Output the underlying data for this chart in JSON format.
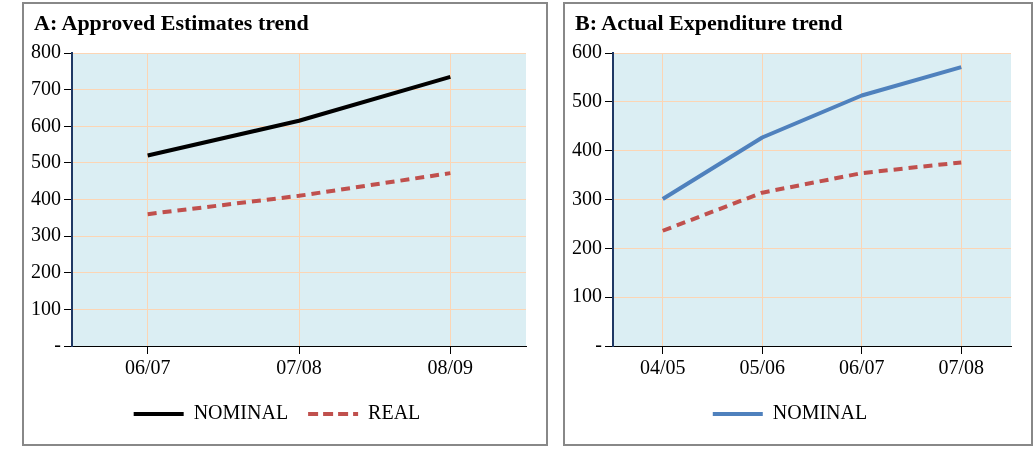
{
  "chart_data": [
    {
      "type": "line",
      "title": "A: Approved Estimates trend",
      "categories": [
        "06/07",
        "07/08",
        "08/09"
      ],
      "series": [
        {
          "name": "NOMINAL",
          "color": "#000000",
          "values": [
            520,
            615,
            735
          ]
        },
        {
          "name": "REAL",
          "color": "#c0504d",
          "values": [
            360,
            410,
            472
          ],
          "line_style": "dashed"
        }
      ],
      "ylim": [
        0,
        800
      ],
      "yticks": [
        {
          "value": 0,
          "label": "-"
        },
        100,
        200,
        300,
        400,
        500,
        600,
        700,
        800
      ],
      "grid": true,
      "legend": "bottom",
      "marker": "none"
    },
    {
      "type": "line",
      "title": "B: Actual Expenditure trend",
      "categories": [
        "04/05",
        "05/06",
        "06/07",
        "07/08"
      ],
      "series": [
        {
          "name": "NOMINAL",
          "color": "#4f81bd",
          "values": [
            301,
            427,
            513,
            571
          ]
        },
        {
          "color": "#c0504d",
          "values": [
            236,
            314,
            354,
            376
          ],
          "line_style": "dashed"
        }
      ],
      "ylim": [
        0,
        600
      ],
      "yticks": [
        {
          "value": 0,
          "label": "-"
        },
        100,
        200,
        300,
        400,
        500,
        600
      ],
      "grid": true,
      "legend": "bottom",
      "marker": "none"
    }
  ]
}
